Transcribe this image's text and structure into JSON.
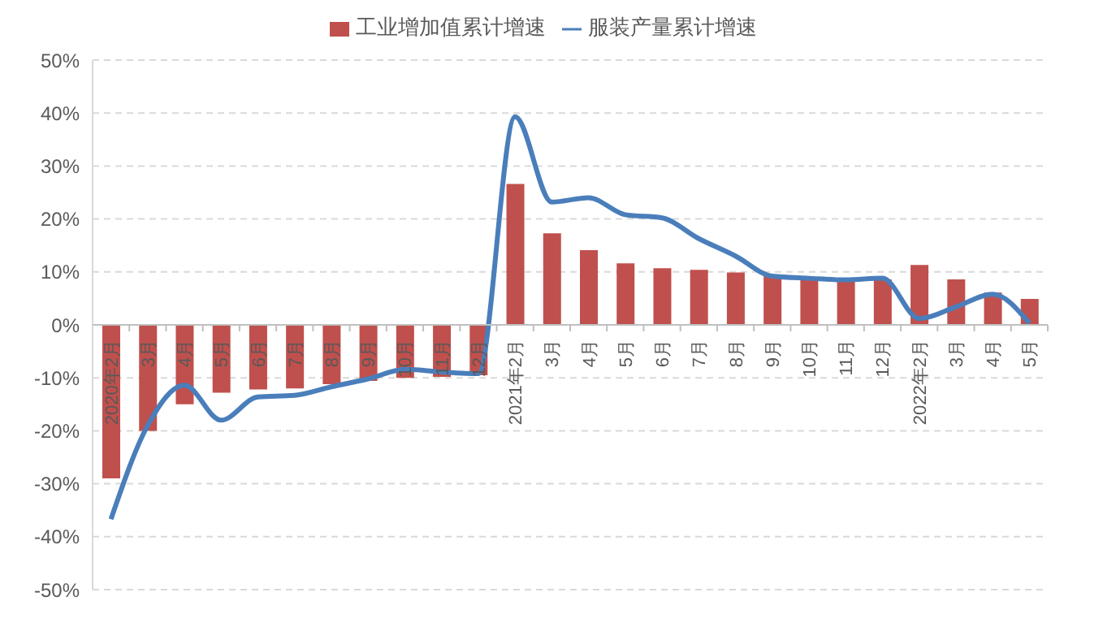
{
  "chart_data": {
    "type": "bar",
    "categories": [
      "2020年2月",
      "3月",
      "4月",
      "5月",
      "6月",
      "7月",
      "8月",
      "9月",
      "10月",
      "11月",
      "12月",
      "2021年2月",
      "3月",
      "4月",
      "5月",
      "6月",
      "7月",
      "8月",
      "9月",
      "10月",
      "11月",
      "12月",
      "2022年2月",
      "3月",
      "4月",
      "5月"
    ],
    "series": [
      {
        "name": "工业增加值累计增速",
        "color": "#c0504d",
        "values": [
          -29,
          -20,
          -15,
          -12.8,
          -12.2,
          -12,
          -11.2,
          -10.6,
          -10,
          -9.8,
          -9.5,
          26.6,
          17.3,
          14.1,
          11.6,
          10.7,
          10.4,
          9.9,
          9.2,
          8.9,
          8.7,
          8.6,
          11.3,
          8.6,
          6.1,
          4.9
        ]
      },
      {
        "name": "服装产量累计增速",
        "type": "line",
        "color": "#4a7ebb",
        "values": [
          -36.7,
          -19,
          -11.4,
          -18,
          -13.6,
          -13.3,
          -11.7,
          -10.2,
          -8.4,
          -8.9,
          -9.2,
          39.3,
          23.2,
          24,
          20.8,
          20.2,
          16.3,
          13,
          9.2,
          8.8,
          8.5,
          8.8,
          1.2,
          3.4,
          5.8,
          0.3
        ]
      }
    ],
    "ylim": [
      -50,
      50
    ],
    "yticks": [
      {
        "value": -50,
        "label": "-50%"
      },
      {
        "value": -40,
        "label": "-40%"
      },
      {
        "value": -30,
        "label": "-30%"
      },
      {
        "value": -20,
        "label": "-20%"
      },
      {
        "value": -10,
        "label": "-10%"
      },
      {
        "value": 0,
        "label": "0%"
      },
      {
        "value": 10,
        "label": "10%"
      },
      {
        "value": 20,
        "label": "20%"
      },
      {
        "value": 30,
        "label": "30%"
      },
      {
        "value": 40,
        "label": "40%"
      },
      {
        "value": 50,
        "label": "50%"
      }
    ],
    "grid": "y",
    "legend": "top",
    "marker": "none",
    "line_style": "solid"
  }
}
